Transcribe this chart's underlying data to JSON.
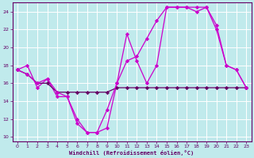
{
  "xlabel": "Windchill (Refroidissement éolien,°C)",
  "bg_color": "#c0eaec",
  "grid_color": "#ffffff",
  "line_color1": "#cc00cc",
  "line_color2": "#660066",
  "xlim": [
    -0.5,
    23.5
  ],
  "ylim": [
    9.5,
    25.0
  ],
  "yticks": [
    10,
    12,
    14,
    16,
    18,
    20,
    22,
    24
  ],
  "xticks": [
    0,
    1,
    2,
    3,
    4,
    5,
    6,
    7,
    8,
    9,
    10,
    11,
    12,
    13,
    14,
    15,
    16,
    17,
    18,
    19,
    20,
    21,
    22,
    23
  ],
  "series1": {
    "x": [
      0,
      1,
      2,
      3,
      4,
      5,
      6,
      7,
      8,
      9,
      10,
      11,
      12,
      13,
      14,
      15,
      16,
      17,
      18,
      19,
      20,
      21,
      22,
      23
    ],
    "y": [
      17.5,
      18.0,
      15.5,
      16.5,
      14.5,
      14.5,
      11.5,
      10.5,
      10.5,
      11.0,
      16.0,
      21.5,
      18.5,
      16.0,
      18.0,
      24.5,
      24.5,
      24.5,
      24.5,
      24.5,
      22.5,
      18.0,
      17.5,
      15.5
    ]
  },
  "series2": {
    "x": [
      0,
      1,
      2,
      3,
      4,
      5,
      6,
      7,
      8,
      9,
      10,
      11,
      12,
      13,
      14,
      15,
      16,
      17,
      18,
      19,
      20,
      21,
      22,
      23
    ],
    "y": [
      17.5,
      17.0,
      16.0,
      16.0,
      15.0,
      15.0,
      15.0,
      15.0,
      15.0,
      15.0,
      15.5,
      15.5,
      15.5,
      15.5,
      15.5,
      15.5,
      15.5,
      15.5,
      15.5,
      15.5,
      15.5,
      15.5,
      15.5,
      15.5
    ]
  },
  "series3": {
    "x": [
      0,
      1,
      2,
      3,
      4,
      5,
      6,
      7,
      8,
      9,
      10,
      11,
      12,
      13,
      14,
      15,
      16,
      17,
      18,
      19,
      20,
      21,
      22,
      23
    ],
    "y": [
      17.5,
      17.0,
      16.0,
      16.5,
      15.0,
      14.5,
      12.0,
      10.5,
      10.5,
      13.0,
      16.0,
      18.5,
      19.0,
      21.0,
      23.0,
      24.5,
      24.5,
      24.5,
      24.0,
      24.5,
      22.0,
      18.0,
      17.5,
      15.5
    ]
  }
}
